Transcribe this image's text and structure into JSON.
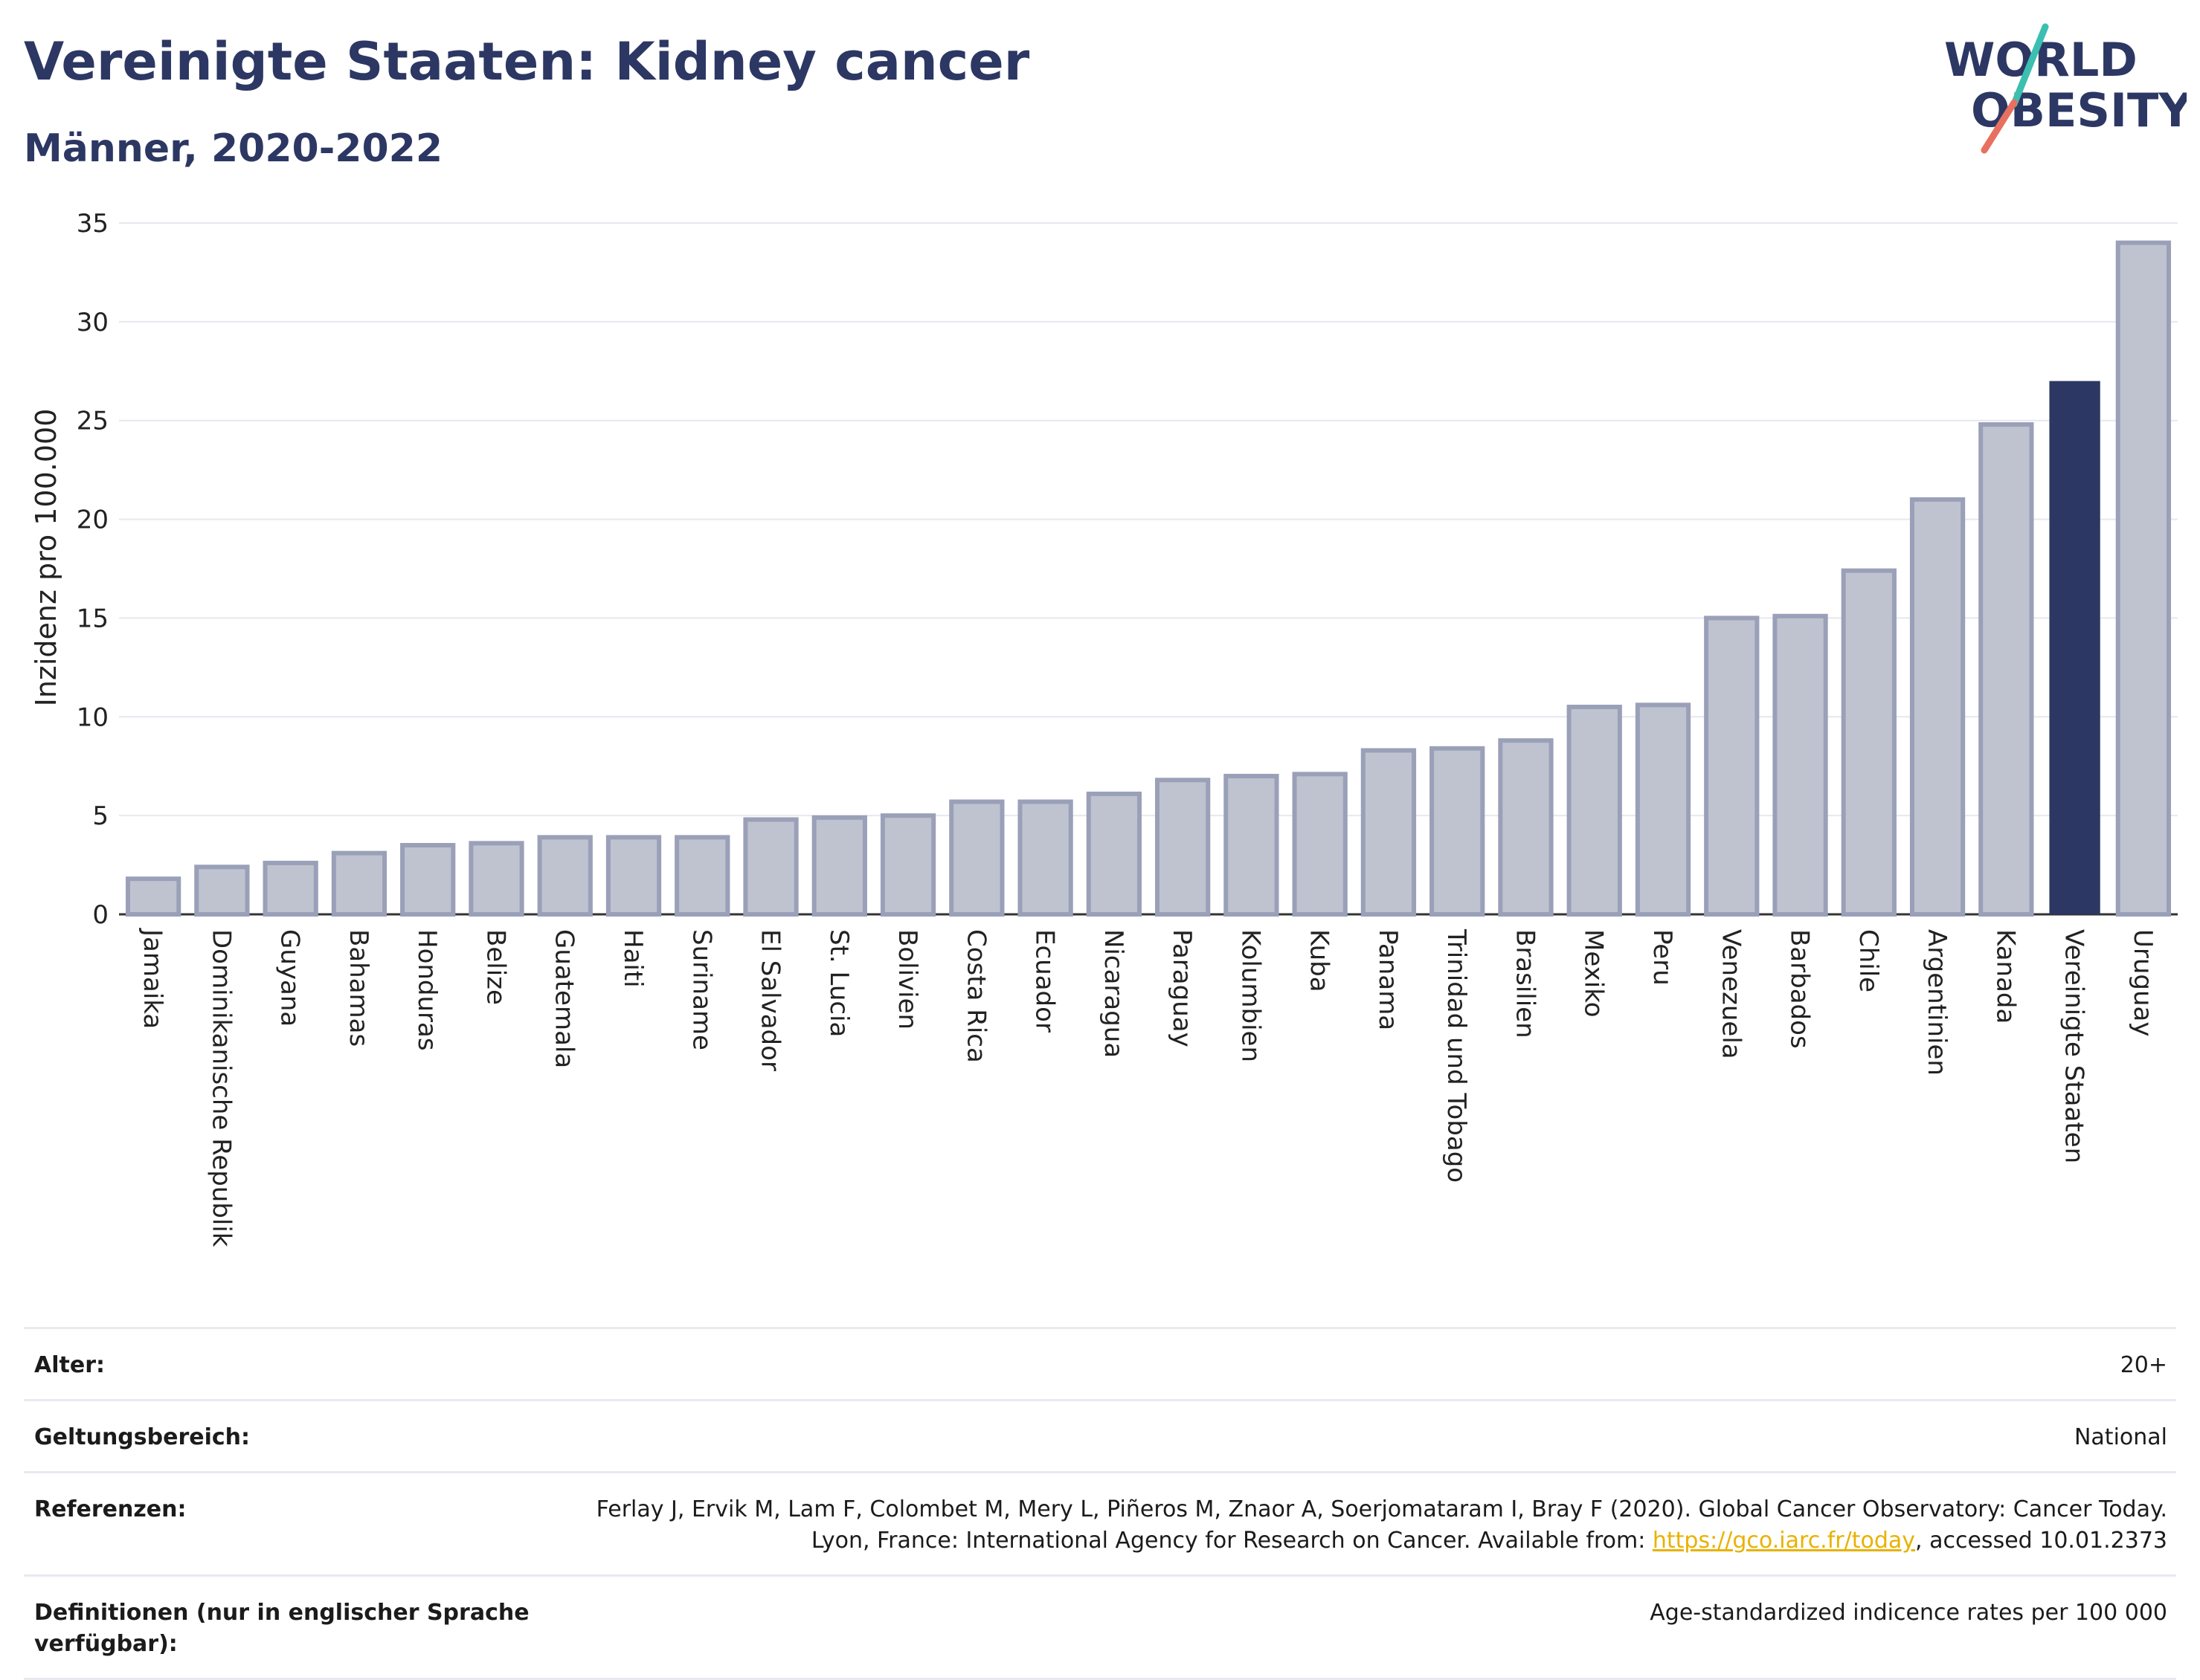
{
  "header": {
    "title": "Vereinigte Staaten: Kidney cancer",
    "subtitle": "Männer, 2020-2022"
  },
  "logo": {
    "line1": "WORLD",
    "line2": "OBESITY",
    "icon": "world-obesity-logo"
  },
  "colors": {
    "bar": "#bfc3d0",
    "bar_stroke": "#9aa0b8",
    "highlight": "#2c3763",
    "accent_line": "#e87060",
    "accent_line2": "#3bbfb0"
  },
  "chart_data": {
    "type": "bar",
    "ylabel": "Inzidenz pro 100.000",
    "xlabel": "",
    "ylim": [
      0,
      35
    ],
    "yticks": [
      0,
      5,
      10,
      15,
      20,
      25,
      30,
      35
    ],
    "grid": true,
    "highlight": "Vereinigte Staaten",
    "categories": [
      "Jamaika",
      "Dominikanische Republik",
      "Guyana",
      "Bahamas",
      "Honduras",
      "Belize",
      "Guatemala",
      "Haiti",
      "Suriname",
      "El Salvador",
      "St. Lucia",
      "Bolivien",
      "Costa Rica",
      "Ecuador",
      "Nicaragua",
      "Paraguay",
      "Kolumbien",
      "Kuba",
      "Panama",
      "Trinidad und Tobago",
      "Brasilien",
      "Mexiko",
      "Peru",
      "Venezuela",
      "Barbados",
      "Chile",
      "Argentinien",
      "Kanada",
      "Vereinigte Staaten",
      "Uruguay"
    ],
    "values": [
      1.8,
      2.4,
      2.6,
      3.1,
      3.5,
      3.6,
      3.9,
      3.9,
      3.9,
      4.8,
      4.9,
      5.0,
      5.7,
      5.7,
      6.1,
      6.8,
      7.0,
      7.1,
      8.3,
      8.4,
      8.8,
      10.5,
      10.6,
      15.0,
      15.1,
      17.4,
      21.0,
      24.8,
      27.0,
      34.0
    ]
  },
  "meta": [
    {
      "key": "Alter:",
      "value": "20+"
    },
    {
      "key": "Geltungsbereich:",
      "value": "National"
    },
    {
      "key": "Referenzen:",
      "value_before": "Ferlay J, Ervik M, Lam F, Colombet M, Mery L, Piñeros M, Znaor A, Soerjomataram I, Bray F (2020). Global Cancer Observatory: Cancer Today. Lyon, France: International Agency for Research on Cancer. Available from: ",
      "link": "https://gco.iarc.fr/today",
      "value_after": ", accessed 10.01.2373"
    },
    {
      "key": "Definitionen (nur in englischer Sprache verfügbar):",
      "value": "Age-standardized indicence rates per 100 000"
    }
  ]
}
